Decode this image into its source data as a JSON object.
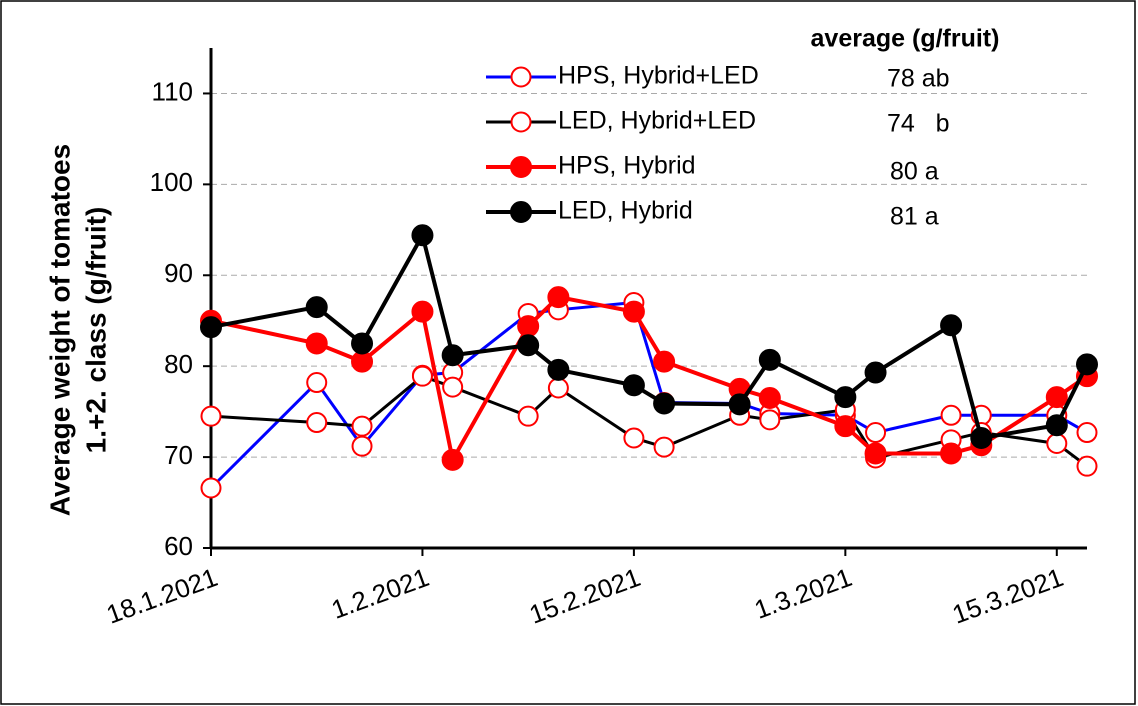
{
  "chart_data": {
    "type": "line",
    "y_label_lines": [
      "Average weight of tomatoes",
      "1.+2. class (g/fruit)"
    ],
    "average_heading": "average (g/fruit)",
    "x": [
      "2021-01-18",
      "2021-01-25",
      "2021-01-28",
      "2021-02-01",
      "2021-02-03",
      "2021-02-08",
      "2021-02-10",
      "2021-02-15",
      "2021-02-17",
      "2021-02-22",
      "2021-02-24",
      "2021-03-01",
      "2021-03-03",
      "2021-03-08",
      "2021-03-10",
      "2021-03-15",
      "2021-03-17"
    ],
    "xlim": [
      "2021-01-18",
      "2021-03-17"
    ],
    "xticks": [
      {
        "value": "2021-01-18",
        "label": "18.1.2021"
      },
      {
        "value": "2021-02-01",
        "label": "1.2.2021"
      },
      {
        "value": "2021-02-15",
        "label": "15.2.2021"
      },
      {
        "value": "2021-03-01",
        "label": "1.3.2021"
      },
      {
        "value": "2021-03-15",
        "label": "15.3.2021"
      }
    ],
    "ylim": [
      60,
      115
    ],
    "yticks": [
      60,
      70,
      80,
      90,
      100,
      110
    ],
    "grid": true,
    "series": [
      {
        "name": "HPS, Hybrid+LED",
        "average": "78 ab",
        "color": "#0000ff",
        "marker_color": "#ff0000",
        "marker_filled": false,
        "values": [
          66.6,
          78.2,
          71.2,
          79.0,
          79.3,
          85.8,
          86.2,
          87.0,
          76.0,
          75.9,
          74.8,
          74.6,
          72.7,
          74.6,
          74.6,
          74.6,
          72.7
        ]
      },
      {
        "name": "LED, Hybrid+LED",
        "average": "74   b",
        "color": "#000000",
        "marker_color": "#ff0000",
        "marker_filled": false,
        "values": [
          74.5,
          73.8,
          73.4,
          78.9,
          77.7,
          74.5,
          77.6,
          72.1,
          71.1,
          74.6,
          74.1,
          75.2,
          69.9,
          71.9,
          72.7,
          71.5,
          69.0
        ]
      },
      {
        "name": "HPS, Hybrid",
        "average": "80 a",
        "color": "#ff0000",
        "marker_color": "#ff0000",
        "marker_filled": true,
        "values": [
          85.0,
          82.5,
          80.5,
          86.0,
          69.7,
          84.4,
          87.6,
          86.0,
          80.5,
          77.5,
          76.5,
          73.4,
          70.4,
          70.4,
          71.3,
          76.6,
          78.9
        ]
      },
      {
        "name": "LED, Hybrid",
        "average": "81 a",
        "color": "#000000",
        "marker_color": "#000000",
        "marker_filled": true,
        "values": [
          84.3,
          86.5,
          82.5,
          94.4,
          81.2,
          82.3,
          79.6,
          77.9,
          75.9,
          75.8,
          80.7,
          76.6,
          79.3,
          84.5,
          72.1,
          73.5,
          80.2
        ]
      }
    ]
  }
}
